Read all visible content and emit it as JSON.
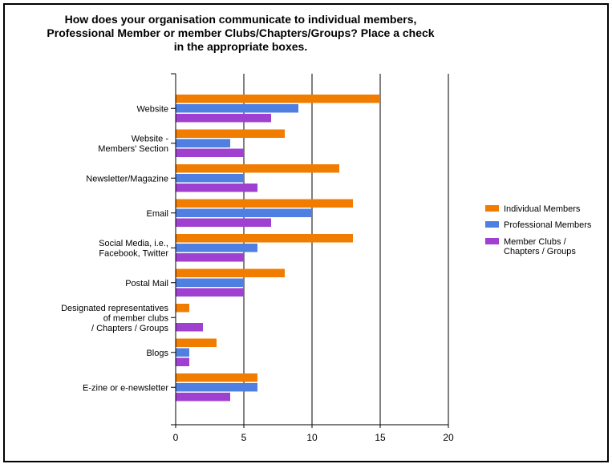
{
  "chart_data": {
    "type": "bar",
    "orientation": "horizontal",
    "title_lines": [
      "How does your organisation communicate to individual members,",
      "Professional Member or member Clubs/Chapters/Groups? Place a check",
      "in the appropriate boxes."
    ],
    "categories": [
      [
        "Website"
      ],
      [
        "Website -",
        "Members' Section"
      ],
      [
        "Newsletter/Magazine"
      ],
      [
        "Email"
      ],
      [
        "Social Media, i.e.,",
        "Facebook, Twitter"
      ],
      [
        "Postal Mail"
      ],
      [
        "Designated representatives",
        "of member clubs",
        "/ Chapters / Groups"
      ],
      [
        "Blogs"
      ],
      [
        "E-zine or e-newsletter"
      ]
    ],
    "series": [
      {
        "name": "Individual Members",
        "color": "#F07C00",
        "values": [
          15,
          8,
          12,
          13,
          13,
          8,
          1,
          3,
          6
        ]
      },
      {
        "name": "Professional Members",
        "color": "#4F7FE0",
        "values": [
          9,
          4,
          5,
          10,
          6,
          5,
          0,
          1,
          6
        ]
      },
      {
        "name": "Member Clubs / Chapters / Groups",
        "legend_lines": [
          "Member Clubs /",
          "Chapters / Groups"
        ],
        "color": "#A040D0",
        "values": [
          7,
          5,
          6,
          7,
          5,
          5,
          2,
          1,
          4
        ]
      }
    ],
    "xlim": [
      0,
      20
    ],
    "xticks": [
      0,
      5,
      10,
      15,
      20
    ],
    "grid": "vertical",
    "legend": "right"
  }
}
